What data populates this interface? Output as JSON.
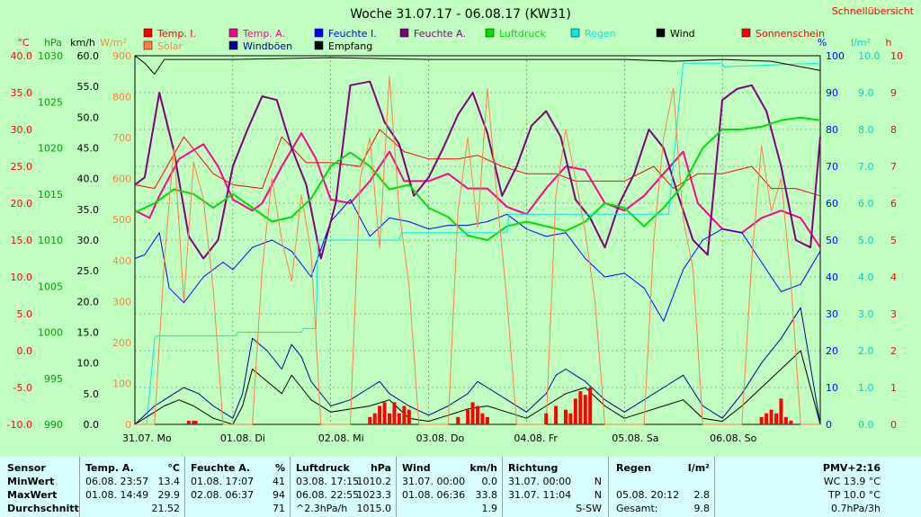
{
  "header": {
    "title": "Woche 31.07.17 - 06.08.17 (KW31)",
    "link": "Schnellübersicht"
  },
  "legend": [
    {
      "label": "Temp. I.",
      "color": "#ff0000"
    },
    {
      "label": "Temp. A.",
      "color": "#ff0090"
    },
    {
      "label": "Feuchte I.",
      "color": "#0000ff"
    },
    {
      "label": "Feuchte A.",
      "color": "#800080"
    },
    {
      "label": "Luftdruck",
      "color": "#00e000"
    },
    {
      "label": "Regen",
      "color": "#00e8e8"
    },
    {
      "label": "Wind",
      "color": "#000000"
    },
    {
      "label": "Sonnenschein",
      "color": "#ff0000"
    },
    {
      "label": "Solar",
      "color": "#ff8040"
    },
    {
      "label": "Windböen",
      "color": "#000090"
    },
    {
      "label": "Empfang",
      "color": "#000000"
    }
  ],
  "axes": {
    "units": {
      "temp": "°C",
      "pressure": "hPa",
      "wind": "km/h",
      "solar": "W/m²",
      "humidity": "%",
      "rain": "l/m²",
      "sun": "h"
    },
    "temp_ticks": [
      "40.0",
      "35.0",
      "30.0",
      "25.0",
      "20.0",
      "15.0",
      "10.0",
      "5.0",
      "0.0",
      "-5.0",
      "-10.0"
    ],
    "pressure_ticks": [
      "1030",
      "1025",
      "1020",
      "1015",
      "1010",
      "1005",
      "1000",
      "995",
      "990"
    ],
    "wind_ticks": [
      "60.0",
      "55.0",
      "50.0",
      "45.0",
      "40.0",
      "35.0",
      "30.0",
      "25.0",
      "20.0",
      "15.0",
      "10.0",
      "5.0",
      "0.0"
    ],
    "solar_ticks": [
      "900",
      "800",
      "700",
      "600",
      "500",
      "400",
      "300",
      "200",
      "100",
      "0"
    ],
    "humidity_ticks": [
      "100",
      "90",
      "80",
      "70",
      "60",
      "50",
      "40",
      "30",
      "20",
      "10",
      "0"
    ],
    "rain_ticks": [
      "10.0",
      "9.0",
      "8.0",
      "7.0",
      "6.0",
      "5.0",
      "4.0",
      "3.0",
      "2.0",
      "1.0",
      "0.0"
    ],
    "sun_ticks": [
      "10",
      "9",
      "8",
      "7",
      "6",
      "5",
      "4",
      "3",
      "2",
      "1",
      "0"
    ],
    "day_labels": [
      "31.07.  Mo",
      "01.08.  Di",
      "02.08.  Mi",
      "03.08.  Do",
      "04.08.  Fr",
      "05.08.  Sa",
      "06.08.  So"
    ]
  },
  "colors": {
    "background": "#c0ffc0",
    "plot_bg": "#ffffff",
    "summary_bg": "#d8ffff",
    "axis_red": "#ff0000",
    "axis_green": "#00a000",
    "axis_orange": "#ff8040",
    "axis_blue": "#0000ff",
    "axis_cyan": "#00d0d0"
  },
  "chart_data": {
    "type": "line",
    "title": "Woche 31.07.17 - 06.08.17 (KW31)",
    "x_unit": "day",
    "x_range": [
      0,
      7
    ],
    "x_ticks": [
      "31.07. Mo",
      "01.08. Di",
      "02.08. Mi",
      "03.08. Do",
      "04.08. Fr",
      "05.08. Sa",
      "06.08. So"
    ],
    "y_ranges": {
      "temp": [
        -10,
        40
      ],
      "pressure": [
        990,
        1030
      ],
      "wind": [
        0,
        60
      ],
      "solar": [
        0,
        900
      ],
      "humidity": [
        0,
        100
      ],
      "rain": [
        0,
        10
      ],
      "sun": [
        0,
        10
      ]
    },
    "grid": true,
    "series": [
      {
        "name": "Temp. I.",
        "axis": "temp",
        "color": "#ff0000",
        "x": [
          0,
          0.2,
          0.5,
          0.8,
          1.0,
          1.3,
          1.5,
          1.75,
          2.0,
          2.3,
          2.5,
          2.75,
          3.0,
          3.3,
          3.5,
          3.75,
          4.0,
          4.3,
          4.5,
          4.75,
          5.0,
          5.3,
          5.5,
          5.75,
          6.0,
          6.3,
          6.5,
          6.75,
          7.0
        ],
        "y": [
          22.5,
          22,
          29,
          24,
          22.5,
          22,
          29,
          25.5,
          25.5,
          25,
          30,
          27,
          26,
          26,
          26.5,
          25,
          24,
          24,
          23,
          23,
          23,
          25,
          22,
          24,
          24,
          25,
          22,
          22,
          21
        ]
      },
      {
        "name": "Temp. A.",
        "axis": "temp",
        "color": "#ff0090",
        "x": [
          0,
          0.15,
          0.25,
          0.45,
          0.7,
          0.85,
          1.0,
          1.2,
          1.3,
          1.5,
          1.7,
          1.85,
          2.0,
          2.2,
          2.4,
          2.6,
          2.75,
          3.0,
          3.2,
          3.4,
          3.6,
          3.8,
          4.0,
          4.2,
          4.4,
          4.6,
          4.8,
          5.0,
          5.2,
          5.4,
          5.6,
          5.75,
          6.0,
          6.2,
          6.4,
          6.6,
          6.8,
          7.0
        ],
        "y": [
          19,
          18,
          21,
          26,
          28,
          25,
          20.5,
          19,
          20,
          25,
          29.5,
          26,
          20.5,
          20,
          23,
          27,
          23,
          23,
          24,
          22,
          22,
          19.5,
          18.5,
          22,
          25,
          24.5,
          20,
          19,
          21,
          24,
          27,
          20,
          16.5,
          16,
          18,
          19,
          18,
          14
        ]
      },
      {
        "name": "Feuchte I.",
        "axis": "humidity",
        "color": "#0000ff",
        "x": [
          0,
          0.1,
          0.25,
          0.35,
          0.5,
          0.7,
          0.9,
          1.0,
          1.2,
          1.4,
          1.6,
          1.8,
          2.0,
          2.2,
          2.4,
          2.6,
          2.8,
          3.0,
          3.2,
          3.4,
          3.6,
          3.8,
          4.0,
          4.2,
          4.4,
          4.6,
          4.8,
          5.0,
          5.2,
          5.4,
          5.6,
          5.8,
          6.0,
          6.2,
          6.4,
          6.6,
          6.8,
          7.0
        ],
        "y": [
          45,
          46,
          52,
          37,
          33,
          40,
          44,
          42,
          48,
          50,
          47,
          40,
          55,
          61,
          51,
          56,
          55,
          53,
          54,
          54,
          55,
          57,
          53,
          51,
          52,
          45,
          40,
          41,
          37,
          28,
          42,
          50,
          53,
          52,
          44,
          36,
          38,
          47
        ]
      },
      {
        "name": "Feuchte A.",
        "axis": "humidity",
        "color": "#800080",
        "x": [
          0,
          0.1,
          0.25,
          0.4,
          0.55,
          0.7,
          0.85,
          1.0,
          1.15,
          1.3,
          1.45,
          1.6,
          1.75,
          1.9,
          2.05,
          2.2,
          2.4,
          2.55,
          2.7,
          2.85,
          3.0,
          3.15,
          3.3,
          3.45,
          3.6,
          3.75,
          3.9,
          4.05,
          4.2,
          4.35,
          4.5,
          4.65,
          4.8,
          4.95,
          5.1,
          5.25,
          5.4,
          5.55,
          5.7,
          5.85,
          6.0,
          6.15,
          6.3,
          6.45,
          6.6,
          6.75,
          6.9,
          7.0
        ],
        "y": [
          65,
          67,
          90,
          74,
          51,
          45,
          50,
          70,
          80,
          89,
          88,
          75,
          65,
          45,
          60,
          92,
          93,
          82,
          76,
          62,
          67,
          75,
          84,
          90,
          79,
          62,
          70,
          81,
          85,
          78,
          61,
          56,
          48,
          60,
          68,
          80,
          75,
          62,
          50,
          46,
          88,
          91,
          92,
          85,
          70,
          50,
          48,
          78
        ]
      },
      {
        "name": "Luftdruck",
        "axis": "pressure",
        "color": "#00e000",
        "x": [
          0,
          0.2,
          0.4,
          0.6,
          0.8,
          1.0,
          1.2,
          1.4,
          1.6,
          1.8,
          2.0,
          2.2,
          2.4,
          2.6,
          2.8,
          3.0,
          3.2,
          3.4,
          3.6,
          3.8,
          4.0,
          4.2,
          4.4,
          4.6,
          4.8,
          5.0,
          5.2,
          5.4,
          5.6,
          5.8,
          6.0,
          6.2,
          6.4,
          6.6,
          6.8,
          7.0
        ],
        "y": [
          1013,
          1014,
          1015.5,
          1015,
          1013.5,
          1015,
          1013.5,
          1012,
          1012.5,
          1014.5,
          1018,
          1019.5,
          1018,
          1015.5,
          1016,
          1013.5,
          1012.5,
          1010.5,
          1010,
          1011.5,
          1012,
          1011.5,
          1011,
          1012,
          1014,
          1013.5,
          1011.5,
          1013.5,
          1016,
          1020,
          1022,
          1022,
          1022.3,
          1023,
          1023.3,
          1023
        ]
      },
      {
        "name": "Regen",
        "axis": "rain",
        "color": "#00e8e8",
        "x": [
          0,
          0.12,
          0.2,
          0.22,
          1.03,
          1.05,
          1.7,
          1.72,
          1.85,
          1.87,
          2.7,
          2.72,
          3.8,
          3.82,
          5.45,
          5.48,
          5.55,
          5.6,
          6.0,
          6.02,
          7.0
        ],
        "y": [
          0,
          0,
          2.3,
          2.4,
          2.4,
          2.5,
          2.5,
          2.6,
          2.6,
          5.0,
          5.0,
          5.2,
          5.2,
          5.7,
          5.7,
          6.5,
          8.5,
          9.8,
          9.8,
          9.7,
          9.8
        ]
      },
      {
        "name": "Wind",
        "axis": "wind",
        "color": "#000000",
        "x": [
          0,
          0.2,
          0.3,
          0.45,
          0.6,
          0.8,
          1.0,
          1.1,
          1.2,
          1.35,
          1.5,
          1.6,
          1.7,
          1.8,
          2.0,
          2.2,
          2.4,
          2.6,
          2.8,
          3.0,
          3.2,
          3.4,
          3.6,
          3.8,
          4.0,
          4.2,
          4.4,
          4.6,
          4.8,
          5.0,
          5.2,
          5.4,
          5.6,
          5.8,
          6.0,
          6.2,
          6.4,
          6.6,
          6.8,
          7.0
        ],
        "y": [
          0,
          2,
          3,
          4,
          3,
          1,
          0,
          3,
          9,
          7,
          5,
          8,
          6,
          4,
          2,
          2.5,
          3,
          4,
          1,
          0.5,
          1.5,
          2.5,
          3,
          2,
          1,
          3,
          5,
          6,
          3,
          1,
          2,
          3,
          4,
          1,
          0.5,
          3,
          6,
          9,
          12,
          0
        ]
      },
      {
        "name": "Windböen",
        "axis": "wind",
        "color": "#000090",
        "x": [
          0,
          0.2,
          0.3,
          0.4,
          0.5,
          0.65,
          0.8,
          1.0,
          1.1,
          1.2,
          1.35,
          1.5,
          1.6,
          1.7,
          1.8,
          2.0,
          2.2,
          2.4,
          2.5,
          2.6,
          2.8,
          3.0,
          3.2,
          3.4,
          3.5,
          3.6,
          3.8,
          4.0,
          4.2,
          4.3,
          4.4,
          4.6,
          4.8,
          5.0,
          5.2,
          5.4,
          5.6,
          5.8,
          6.0,
          6.2,
          6.4,
          6.6,
          6.8,
          7.0
        ],
        "y": [
          0,
          3,
          4,
          5,
          6,
          5,
          3,
          1,
          5,
          14,
          12,
          9,
          13,
          11,
          7,
          3,
          4,
          6,
          7,
          5,
          3,
          1.5,
          3,
          5,
          7,
          6,
          4,
          2,
          5,
          8,
          9,
          7,
          4,
          2,
          4,
          6,
          8,
          3,
          1,
          5,
          10,
          14,
          19,
          0
        ]
      },
      {
        "name": "Solar",
        "axis": "solar",
        "color": "#ff8040",
        "x": [
          0,
          0.2,
          0.3,
          0.4,
          0.5,
          0.6,
          0.7,
          0.8,
          0.9,
          1.0,
          1.2,
          1.3,
          1.4,
          1.5,
          1.6,
          1.7,
          1.8,
          1.9,
          2.0,
          2.2,
          2.3,
          2.4,
          2.5,
          2.6,
          2.7,
          2.8,
          2.9,
          3.0,
          3.2,
          3.3,
          3.4,
          3.5,
          3.6,
          3.7,
          3.8,
          3.9,
          4.0,
          4.2,
          4.3,
          4.4,
          4.5,
          4.6,
          4.7,
          4.8,
          4.9,
          5.0,
          5.2,
          5.3,
          5.4,
          5.5,
          5.6,
          5.7,
          5.8,
          5.9,
          6.0,
          6.2,
          6.3,
          6.4,
          6.5,
          6.6,
          6.7,
          6.8,
          6.9,
          7.0
        ],
        "y": [
          0,
          0,
          400,
          680,
          300,
          640,
          550,
          330,
          0,
          0,
          0,
          380,
          600,
          450,
          350,
          560,
          420,
          0,
          0,
          0,
          600,
          700,
          430,
          850,
          520,
          340,
          0,
          0,
          0,
          520,
          700,
          480,
          820,
          550,
          300,
          0,
          0,
          0,
          560,
          720,
          600,
          470,
          300,
          0,
          0,
          0,
          0,
          450,
          700,
          820,
          500,
          380,
          0,
          0,
          0,
          0,
          400,
          680,
          520,
          600,
          350,
          0,
          0,
          0
        ]
      },
      {
        "name": "Empfang",
        "axis": "humidity",
        "color": "#000000",
        "x": [
          0,
          0.1,
          0.2,
          0.3,
          0.5,
          1,
          2,
          3,
          4,
          5,
          5.5,
          6,
          6.5,
          7
        ],
        "y": [
          100,
          98,
          95,
          99,
          99,
          99,
          99.5,
          99,
          99,
          99,
          98.5,
          99,
          98.5,
          96
        ]
      },
      {
        "name": "Sonnenschein",
        "axis": "sun",
        "color": "#ff0000",
        "type": "bar",
        "x": [
          0.55,
          0.6,
          0.62,
          2.4,
          2.45,
          2.5,
          2.55,
          2.6,
          2.65,
          2.7,
          2.75,
          2.8,
          3.3,
          3.4,
          3.45,
          3.5,
          3.55,
          3.6,
          4.2,
          4.3,
          4.4,
          4.45,
          4.5,
          4.55,
          4.6,
          4.65,
          6.4,
          6.45,
          6.5,
          6.55,
          6.6,
          6.65,
          6.7
        ],
        "y": [
          0.1,
          0.1,
          0.1,
          0.2,
          0.3,
          0.5,
          0.6,
          0.3,
          0.6,
          0.3,
          0.5,
          0.4,
          0.2,
          0.4,
          0.6,
          0.5,
          0.3,
          0.2,
          0.3,
          0.5,
          0.4,
          0.3,
          0.7,
          0.9,
          0.8,
          1.0,
          0.2,
          0.3,
          0.4,
          0.3,
          0.7,
          0.2,
          0.1
        ]
      }
    ]
  },
  "summary": {
    "rows": [
      "Sensor",
      "MinWert",
      "MaxWert",
      "Durchschnitt"
    ],
    "temp": {
      "title": "Temp. A.",
      "unit": "°C",
      "min_time": "06.08.  23:57",
      "min": "13.4",
      "max_time": "01.08.  14:49",
      "max": "29.9",
      "avg": "21.52"
    },
    "humidity": {
      "title": "Feuchte A.",
      "unit": "%",
      "min_time": "01.08.  17:07",
      "min": "41",
      "max_time": "02.08.  06:37",
      "max": "94",
      "avg": "71"
    },
    "pressure": {
      "title": "Luftdruck",
      "unit": "hPa",
      "min_time": "03.08.  17:15",
      "min": "1010.2",
      "max_time": "06.08.  22:55",
      "max": "1023.3",
      "trend": "^2.3hPa/h",
      "avg": "1015.0"
    },
    "wind": {
      "title": "Wind",
      "unit": "km/h",
      "min_time": "31.07.  00:00",
      "min": "0.0",
      "max_time": "01.08.  06:36",
      "max": "33.8",
      "avg": "1.9"
    },
    "direction": {
      "title": "Richtung",
      "min_time": "31.07.  00:00",
      "min": "N",
      "max_time": "31.07.  11:04",
      "max": "N",
      "avg": "S-SW"
    },
    "rain": {
      "title": "Regen",
      "unit": "l/m²",
      "max_time": "05.08.  20:12",
      "max": "2.8",
      "total_label": "Gesamt:",
      "total": "9.8"
    },
    "pmv": {
      "title": "PMV+2:16",
      "wc": "WC 13.9 °C",
      "tp": "TP 10.0 °C",
      "trend": "0.7hPa/3h"
    }
  }
}
